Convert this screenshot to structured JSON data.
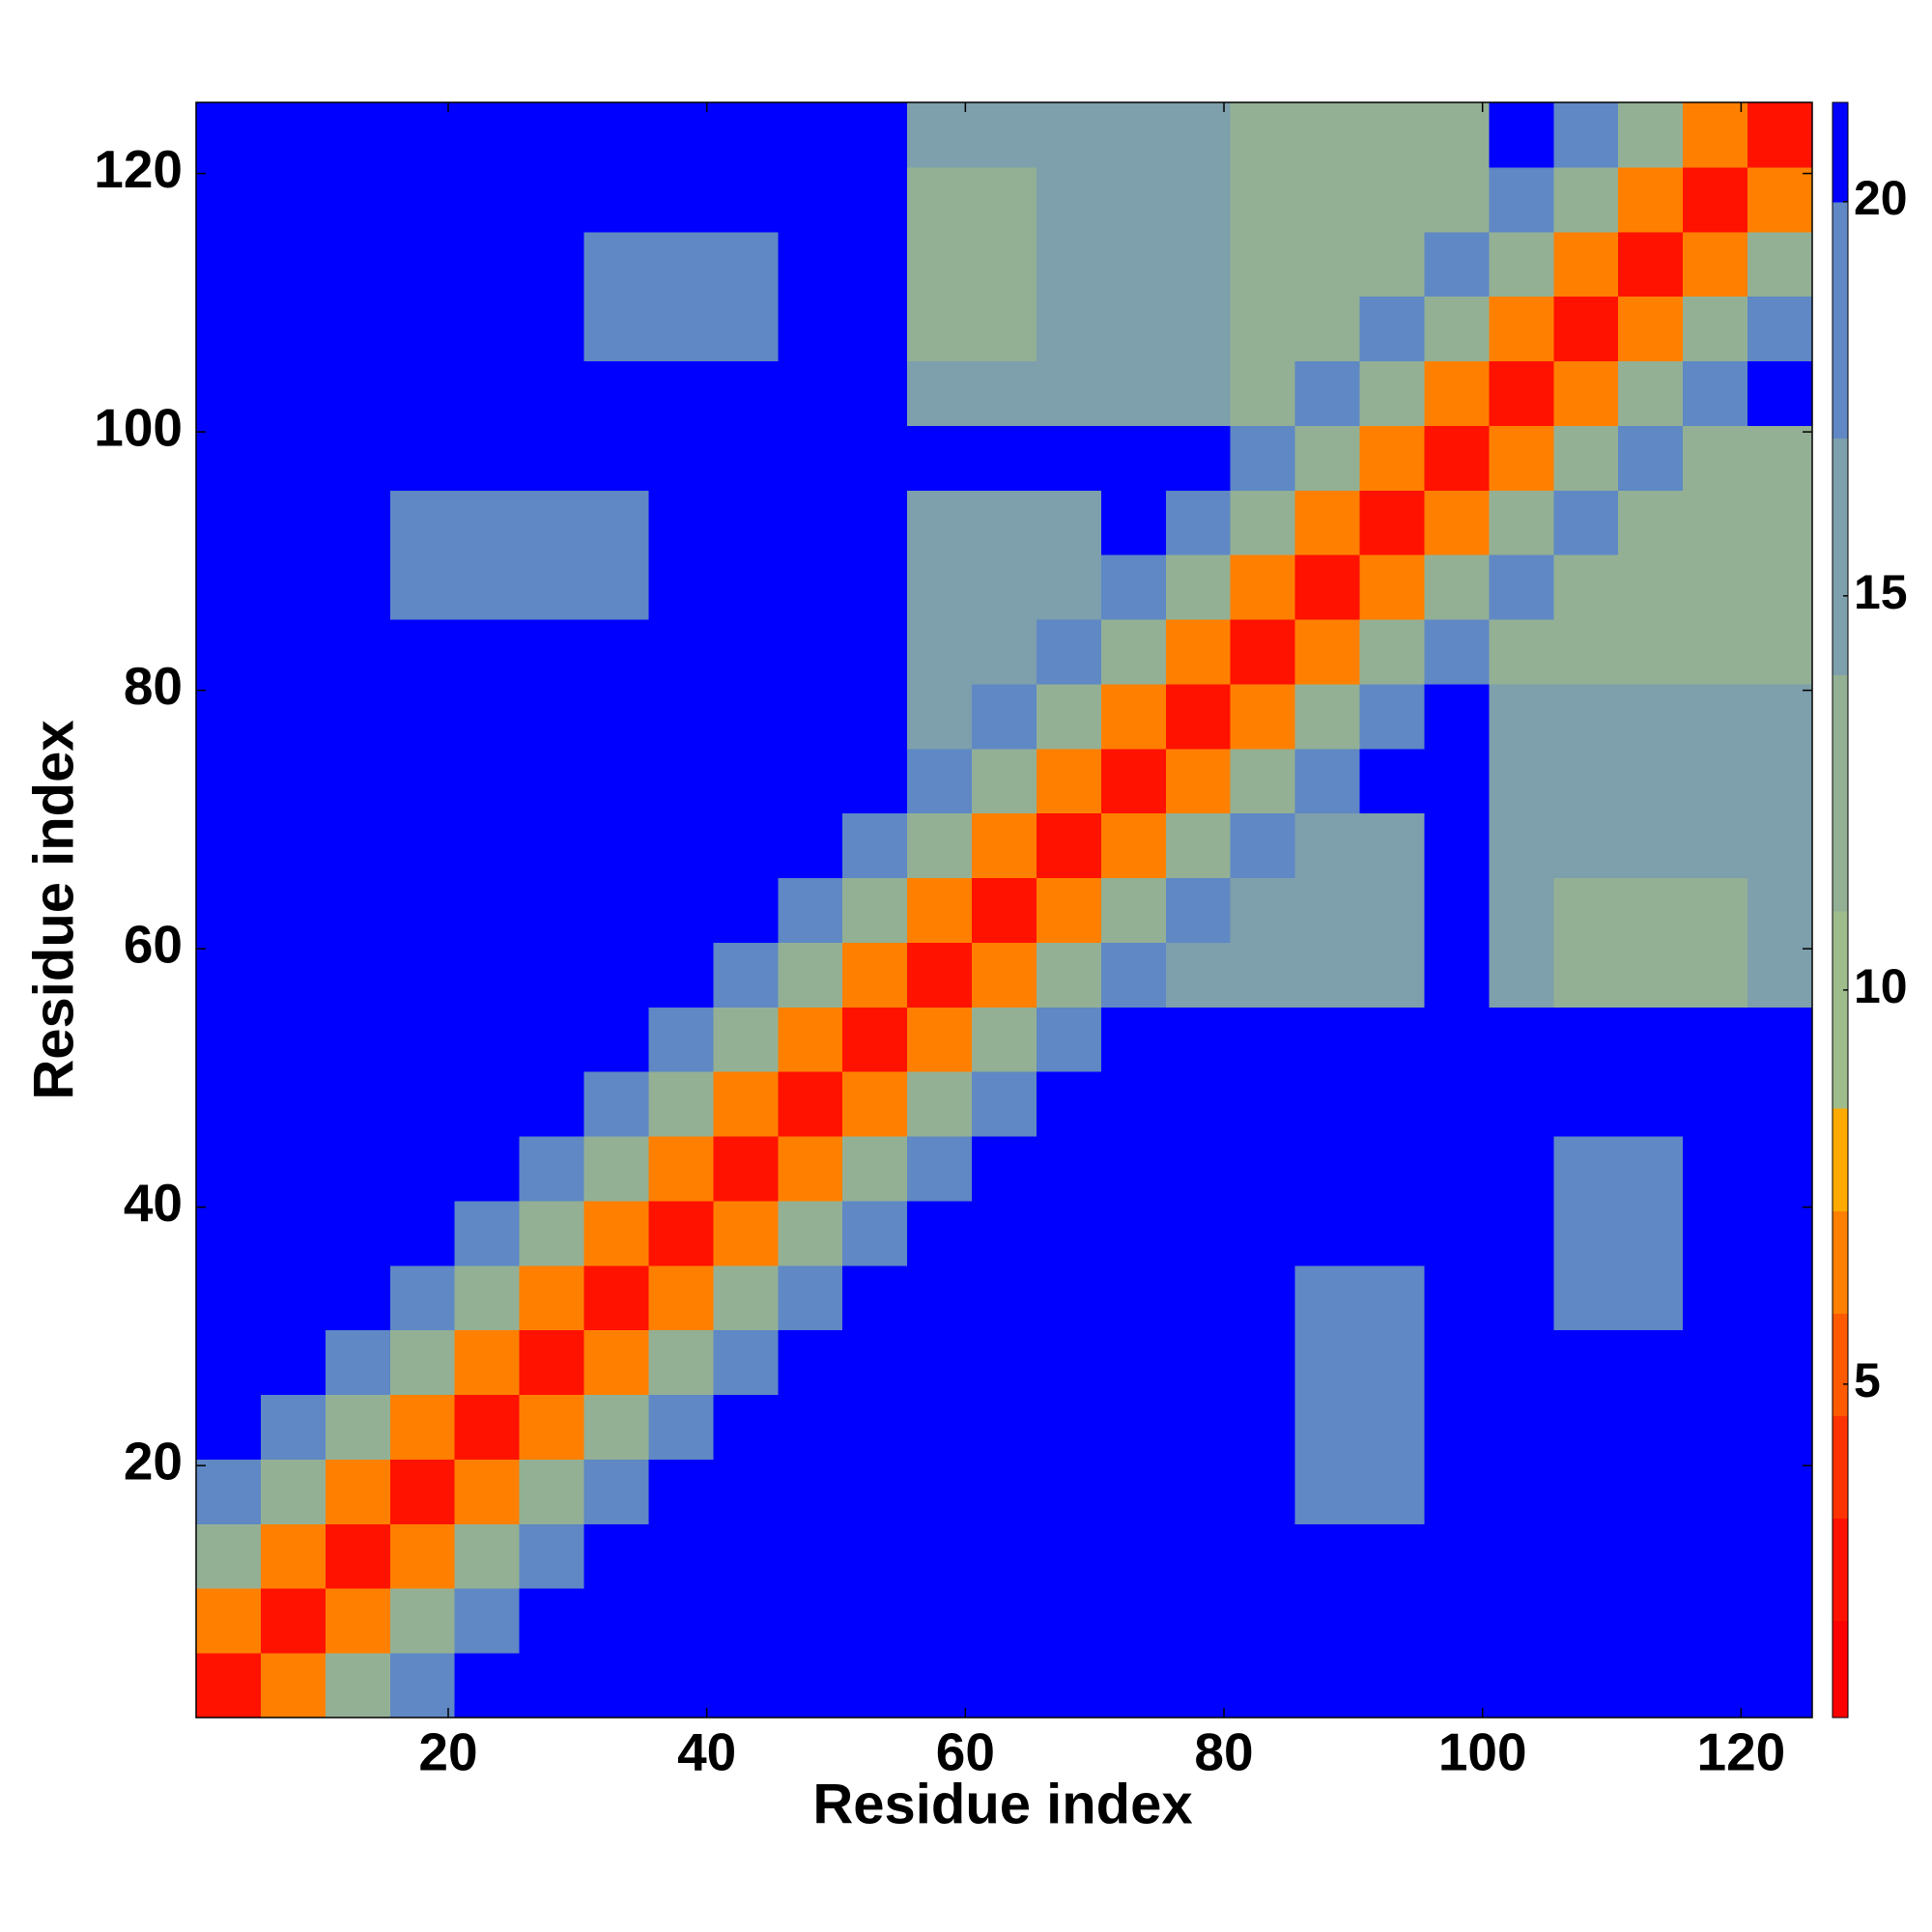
{
  "chart_data": {
    "type": "heatmap",
    "xlabel": "Residue index",
    "ylabel": "Residue index",
    "xlim": [
      0.5,
      125.5
    ],
    "ylim": [
      0.5,
      125.5
    ],
    "xticks": [
      20,
      40,
      60,
      80,
      100,
      120
    ],
    "yticks": [
      20,
      40,
      60,
      80,
      100,
      120
    ],
    "xbins": [
      0.5,
      5.5,
      10.5,
      15.5,
      20.5,
      25.5,
      30.5,
      35.5,
      40.5,
      45.5,
      50.5,
      55.5,
      60.5,
      65.5,
      70.5,
      75.5,
      80.5,
      85.5,
      90.5,
      95.5,
      100.5,
      105.5,
      110.5,
      115.5,
      120.5,
      125.5
    ],
    "ybins": [
      0.5,
      5.5,
      10.5,
      15.5,
      20.5,
      25.5,
      30.5,
      35.5,
      40.5,
      45.5,
      50.5,
      55.5,
      60.5,
      65.5,
      70.5,
      75.5,
      80.5,
      85.5,
      90.5,
      95.5,
      100.5,
      105.5,
      110.5,
      115.5,
      120.5,
      125.5
    ],
    "values": [
      [
        2.5,
        7,
        12,
        17,
        21,
        21,
        21,
        21,
        21,
        21,
        21,
        21,
        21,
        21,
        21,
        21,
        21,
        21,
        21,
        21,
        21,
        21,
        21,
        21,
        21
      ],
      [
        7,
        2.5,
        7,
        12,
        17,
        21,
        21,
        21,
        21,
        21,
        21,
        21,
        21,
        21,
        21,
        21,
        21,
        21,
        21,
        21,
        21,
        21,
        21,
        21,
        21
      ],
      [
        12,
        7,
        2.5,
        7,
        12,
        17,
        21,
        21,
        21,
        21,
        21,
        21,
        21,
        21,
        21,
        21,
        21,
        21,
        21,
        21,
        21,
        21,
        21,
        21,
        21
      ],
      [
        17,
        12,
        7,
        2.5,
        7,
        12,
        17,
        21,
        21,
        21,
        21,
        21,
        21,
        21,
        21,
        21,
        21,
        18,
        18,
        21,
        21,
        21,
        21,
        21,
        21
      ],
      [
        21,
        17,
        12,
        7,
        2.5,
        7,
        12,
        17,
        21,
        21,
        21,
        21,
        21,
        21,
        21,
        21,
        21,
        18,
        18,
        21,
        21,
        21,
        21,
        21,
        21
      ],
      [
        21,
        21,
        17,
        12,
        7,
        2.5,
        7,
        12,
        17,
        21,
        21,
        21,
        21,
        21,
        21,
        21,
        21,
        18,
        18,
        21,
        21,
        21,
        21,
        21,
        21
      ],
      [
        21,
        21,
        21,
        17,
        12,
        7,
        2.5,
        7,
        12,
        17,
        21,
        21,
        21,
        21,
        21,
        21,
        21,
        18,
        18,
        21,
        21,
        17,
        17,
        21,
        21
      ],
      [
        21,
        21,
        21,
        21,
        17,
        12,
        7,
        2.5,
        7,
        12,
        17,
        21,
        21,
        21,
        21,
        21,
        21,
        21,
        21,
        21,
        21,
        17,
        17,
        21,
        21
      ],
      [
        21,
        21,
        21,
        21,
        21,
        17,
        12,
        7,
        2.5,
        7,
        12,
        17,
        21,
        21,
        21,
        21,
        21,
        21,
        21,
        21,
        21,
        17,
        17,
        21,
        21
      ],
      [
        21,
        21,
        21,
        21,
        21,
        21,
        17,
        12,
        7,
        2.5,
        7,
        12,
        17,
        21,
        21,
        21,
        21,
        21,
        21,
        21,
        21,
        21,
        21,
        21,
        21
      ],
      [
        21,
        21,
        21,
        21,
        21,
        21,
        21,
        17,
        12,
        7,
        2.5,
        7,
        12,
        17,
        21,
        21,
        21,
        21,
        21,
        21,
        21,
        21,
        21,
        21,
        21
      ],
      [
        21,
        21,
        21,
        21,
        21,
        21,
        21,
        21,
        17,
        12,
        7,
        2.5,
        7,
        12,
        17,
        14,
        14,
        14,
        14,
        21,
        14,
        12,
        12,
        12,
        14
      ],
      [
        21,
        21,
        21,
        21,
        21,
        21,
        21,
        21,
        21,
        17,
        12,
        7,
        2.5,
        7,
        12,
        17,
        14,
        14,
        14,
        21,
        14,
        12,
        12,
        12,
        14
      ],
      [
        21,
        21,
        21,
        21,
        21,
        21,
        21,
        21,
        21,
        21,
        17,
        12,
        7,
        2.5,
        7,
        12,
        17,
        14,
        14,
        21,
        14,
        14,
        14,
        14,
        14
      ],
      [
        21,
        21,
        21,
        21,
        21,
        21,
        21,
        21,
        21,
        21,
        21,
        17,
        12,
        7,
        2.5,
        7,
        12,
        17,
        21,
        21,
        14,
        14,
        14,
        14,
        14
      ],
      [
        21,
        21,
        21,
        21,
        21,
        21,
        21,
        21,
        21,
        21,
        21,
        14,
        17,
        12,
        7,
        2.5,
        7,
        12,
        17,
        21,
        14,
        14,
        14,
        14,
        14
      ],
      [
        21,
        21,
        21,
        21,
        21,
        21,
        21,
        21,
        21,
        21,
        21,
        14,
        14,
        17,
        12,
        7,
        2.5,
        7,
        12,
        17,
        13,
        13,
        13,
        13,
        13
      ],
      [
        21,
        21,
        21,
        18,
        18,
        18,
        18,
        21,
        21,
        21,
        21,
        14,
        14,
        14,
        17,
        12,
        7,
        2.5,
        7,
        12,
        17,
        13,
        13,
        13,
        13
      ],
      [
        21,
        21,
        21,
        18,
        18,
        18,
        18,
        21,
        21,
        21,
        21,
        14,
        14,
        14,
        21,
        17,
        12,
        7,
        2.5,
        7,
        12,
        17,
        13,
        13,
        13
      ],
      [
        21,
        21,
        21,
        21,
        21,
        21,
        21,
        21,
        21,
        21,
        21,
        21,
        21,
        21,
        21,
        21,
        17,
        12,
        7,
        2.5,
        7,
        12,
        17,
        13,
        13
      ],
      [
        21,
        21,
        21,
        21,
        21,
        21,
        21,
        21,
        21,
        21,
        21,
        14,
        14,
        14,
        14,
        14,
        13,
        17,
        12,
        7,
        2.5,
        7,
        12,
        17,
        21
      ],
      [
        21,
        21,
        21,
        21,
        21,
        21,
        17,
        17,
        17,
        21,
        21,
        12,
        12,
        14,
        14,
        14,
        13,
        13,
        17,
        12,
        7,
        2.5,
        7,
        12,
        17
      ],
      [
        21,
        21,
        21,
        21,
        21,
        21,
        17,
        17,
        17,
        21,
        21,
        12,
        12,
        14,
        14,
        14,
        13,
        13,
        13,
        17,
        12,
        7,
        2.5,
        7,
        12
      ],
      [
        21,
        21,
        21,
        21,
        21,
        21,
        21,
        21,
        21,
        21,
        21,
        12,
        12,
        14,
        14,
        14,
        13,
        13,
        13,
        13,
        17,
        12,
        7,
        2.5,
        7
      ],
      [
        21,
        21,
        21,
        21,
        21,
        21,
        21,
        21,
        21,
        21,
        21,
        14,
        14,
        14,
        14,
        14,
        13,
        13,
        13,
        13,
        21,
        17,
        12,
        7,
        2.5
      ]
    ],
    "colorbar": {
      "lim": [
        0.77,
        21.26
      ],
      "ticks": [
        5,
        10,
        15,
        20
      ],
      "bounds": [
        0.77,
        2.0,
        3.3,
        4.6,
        5.9,
        7.2,
        8.5,
        11,
        14,
        17,
        20,
        21.26
      ],
      "colors": [
        "#ff0000",
        "#ff1200",
        "#ff3300",
        "#ff5a00",
        "#ff8000",
        "#ffaa00",
        "#9ebc8c",
        "#93b095",
        "#7e9fac",
        "#5f88c4",
        "#0000ff"
      ]
    }
  }
}
